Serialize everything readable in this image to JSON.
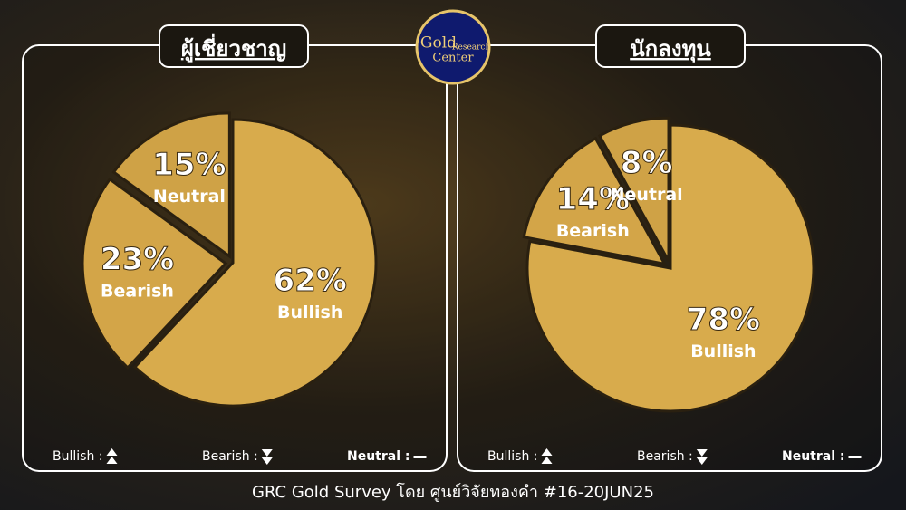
{
  "chart_data": [
    {
      "type": "pie",
      "title": "ผู้เชี่ยวชาญ",
      "categories": [
        "Bullish",
        "Bearish",
        "Neutral"
      ],
      "values": [
        62,
        23,
        15
      ],
      "value_labels": [
        "62%",
        "23%",
        "15%"
      ],
      "colors": [
        "#d8ab4c",
        "#d3a548",
        "#cfa246"
      ],
      "legend": [
        "Bullish :",
        "Bearish :",
        "Neutral :"
      ]
    },
    {
      "type": "pie",
      "title": "นักลงทุน",
      "categories": [
        "Bullish",
        "Bearish",
        "Neutral"
      ],
      "values": [
        78,
        14,
        8
      ],
      "value_labels": [
        "78%",
        "14%",
        "8%"
      ],
      "colors": [
        "#d8ab4c",
        "#d3a548",
        "#cfa246"
      ],
      "legend": [
        "Bullish :",
        "Bearish :",
        "Neutral :"
      ]
    }
  ],
  "logo": [
    "Gold",
    "Research",
    "Center"
  ],
  "footer": "GRC Gold Survey โดย ศูนย์วิจัยทองคำ #16-20JUN25"
}
